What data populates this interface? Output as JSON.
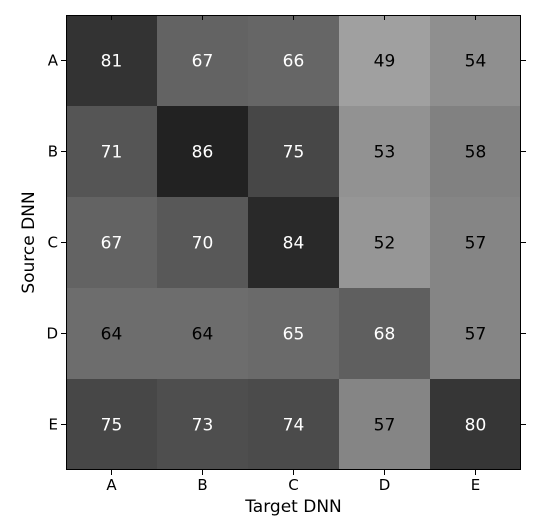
{
  "chart_data": {
    "type": "heatmap",
    "title": "",
    "xlabel": "Target DNN",
    "ylabel": "Source DNN",
    "x_categories": [
      "A",
      "B",
      "C",
      "D",
      "E"
    ],
    "y_categories": [
      "A",
      "B",
      "C",
      "D",
      "E"
    ],
    "values": [
      [
        81,
        67,
        66,
        49,
        54
      ],
      [
        71,
        86,
        75,
        53,
        58
      ],
      [
        67,
        70,
        84,
        52,
        57
      ],
      [
        64,
        64,
        65,
        68,
        57
      ],
      [
        75,
        73,
        74,
        57,
        80
      ]
    ],
    "colormap": "reversed-grayscale",
    "grid": false,
    "legend": "none"
  }
}
